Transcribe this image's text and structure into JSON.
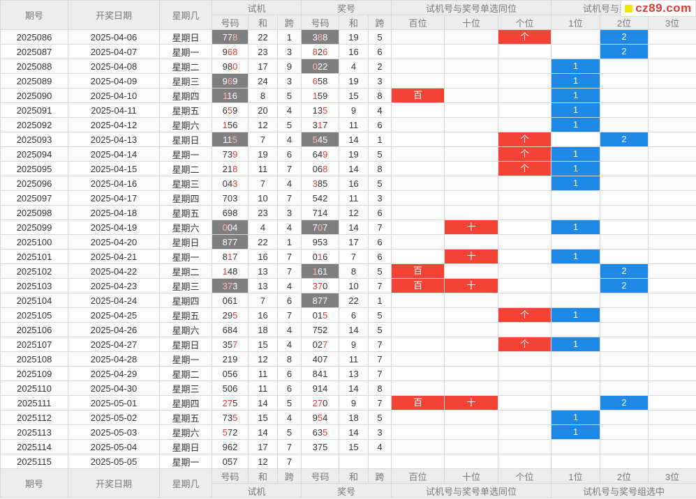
{
  "header": {
    "col_issue": "期号",
    "col_date": "开奖日期",
    "col_weekday": "星期几",
    "group_trial": "试机",
    "group_prize": "奖号",
    "group_same_pos": "试机号与奖号单选同位",
    "group_group_hit": "试机号与奖号组选中",
    "sub_number": "号码",
    "sub_sum": "和",
    "sub_span": "跨",
    "sub_hundreds": "百位",
    "sub_tens": "十位",
    "sub_units": "个位",
    "sub_hit1": "1位",
    "sub_hit2": "2位",
    "sub_hit3": "3位"
  },
  "labels": {
    "hundreds": "百",
    "tens": "十",
    "units": "个"
  },
  "logo": {
    "text": "cz89.com"
  },
  "colors": {
    "red": "#f44336",
    "blue": "#1e88e5",
    "highlight": "#7f7f7f"
  },
  "rows": [
    {
      "issue": "2025086",
      "date": "2025-04-06",
      "weekday": "星期日",
      "trial": "778",
      "tsum": "22",
      "tspan": "1",
      "prize": "388",
      "psum": "19",
      "pspan": "5",
      "same": [
        false,
        false,
        true
      ],
      "hit": "2",
      "hlT": true,
      "hlP": true
    },
    {
      "issue": "2025087",
      "date": "2025-04-07",
      "weekday": "星期一",
      "trial": "968",
      "tsum": "23",
      "tspan": "3",
      "prize": "826",
      "psum": "16",
      "pspan": "6",
      "same": [
        false,
        false,
        false
      ],
      "hit": "2",
      "hlT": false,
      "hlP": false
    },
    {
      "issue": "2025088",
      "date": "2025-04-08",
      "weekday": "星期二",
      "trial": "980",
      "tsum": "17",
      "tspan": "9",
      "prize": "022",
      "psum": "4",
      "pspan": "2",
      "same": [
        false,
        false,
        false
      ],
      "hit": "1",
      "hlT": false,
      "hlP": true
    },
    {
      "issue": "2025089",
      "date": "2025-04-09",
      "weekday": "星期三",
      "trial": "969",
      "tsum": "24",
      "tspan": "3",
      "prize": "658",
      "psum": "19",
      "pspan": "3",
      "same": [
        false,
        false,
        false
      ],
      "hit": "1",
      "hlT": true,
      "hlP": false
    },
    {
      "issue": "2025090",
      "date": "2025-04-10",
      "weekday": "星期四",
      "trial": "116",
      "tsum": "8",
      "tspan": "5",
      "prize": "159",
      "psum": "15",
      "pspan": "8",
      "same": [
        true,
        false,
        false
      ],
      "hit": "1",
      "hlT": true,
      "hlP": false
    },
    {
      "issue": "2025091",
      "date": "2025-04-11",
      "weekday": "星期五",
      "trial": "659",
      "tsum": "20",
      "tspan": "4",
      "prize": "135",
      "psum": "9",
      "pspan": "4",
      "same": [
        false,
        false,
        false
      ],
      "hit": "1",
      "hlT": false,
      "hlP": false
    },
    {
      "issue": "2025092",
      "date": "2025-04-12",
      "weekday": "星期六",
      "trial": "156",
      "tsum": "12",
      "tspan": "5",
      "prize": "317",
      "psum": "11",
      "pspan": "6",
      "same": [
        false,
        false,
        false
      ],
      "hit": "1",
      "hlT": false,
      "hlP": false
    },
    {
      "issue": "2025093",
      "date": "2025-04-13",
      "weekday": "星期日",
      "trial": "115",
      "tsum": "7",
      "tspan": "4",
      "prize": "545",
      "psum": "14",
      "pspan": "1",
      "same": [
        false,
        false,
        true
      ],
      "hit": "2",
      "hlT": true,
      "hlP": true
    },
    {
      "issue": "2025094",
      "date": "2025-04-14",
      "weekday": "星期一",
      "trial": "739",
      "tsum": "19",
      "tspan": "6",
      "prize": "649",
      "psum": "19",
      "pspan": "5",
      "same": [
        false,
        false,
        true
      ],
      "hit": "1",
      "hlT": false,
      "hlP": false
    },
    {
      "issue": "2025095",
      "date": "2025-04-15",
      "weekday": "星期二",
      "trial": "218",
      "tsum": "11",
      "tspan": "7",
      "prize": "068",
      "psum": "14",
      "pspan": "8",
      "same": [
        false,
        false,
        true
      ],
      "hit": "1",
      "hlT": false,
      "hlP": false
    },
    {
      "issue": "2025096",
      "date": "2025-04-16",
      "weekday": "星期三",
      "trial": "043",
      "tsum": "7",
      "tspan": "4",
      "prize": "385",
      "psum": "16",
      "pspan": "5",
      "same": [
        false,
        false,
        false
      ],
      "hit": "1",
      "hlT": false,
      "hlP": false
    },
    {
      "issue": "2025097",
      "date": "2025-04-17",
      "weekday": "星期四",
      "trial": "703",
      "tsum": "10",
      "tspan": "7",
      "prize": "542",
      "psum": "11",
      "pspan": "3",
      "same": [
        false,
        false,
        false
      ],
      "hit": "",
      "hlT": false,
      "hlP": false
    },
    {
      "issue": "2025098",
      "date": "2025-04-18",
      "weekday": "星期五",
      "trial": "698",
      "tsum": "23",
      "tspan": "3",
      "prize": "714",
      "psum": "12",
      "pspan": "6",
      "same": [
        false,
        false,
        false
      ],
      "hit": "",
      "hlT": false,
      "hlP": false
    },
    {
      "issue": "2025099",
      "date": "2025-04-19",
      "weekday": "星期六",
      "trial": "004",
      "tsum": "4",
      "tspan": "4",
      "prize": "707",
      "psum": "14",
      "pspan": "7",
      "same": [
        false,
        true,
        false
      ],
      "hit": "1",
      "hlT": true,
      "hlP": true
    },
    {
      "issue": "2025100",
      "date": "2025-04-20",
      "weekday": "星期日",
      "trial": "877",
      "tsum": "22",
      "tspan": "1",
      "prize": "953",
      "psum": "17",
      "pspan": "6",
      "same": [
        false,
        false,
        false
      ],
      "hit": "",
      "hlT": true,
      "hlP": false
    },
    {
      "issue": "2025101",
      "date": "2025-04-21",
      "weekday": "星期一",
      "trial": "817",
      "tsum": "16",
      "tspan": "7",
      "prize": "016",
      "psum": "7",
      "pspan": "6",
      "same": [
        false,
        true,
        false
      ],
      "hit": "1",
      "hlT": false,
      "hlP": false
    },
    {
      "issue": "2025102",
      "date": "2025-04-22",
      "weekday": "星期二",
      "trial": "148",
      "tsum": "13",
      "tspan": "7",
      "prize": "161",
      "psum": "8",
      "pspan": "5",
      "same": [
        true,
        false,
        false
      ],
      "hit": "2",
      "hlT": false,
      "hlP": true
    },
    {
      "issue": "2025103",
      "date": "2025-04-23",
      "weekday": "星期三",
      "trial": "373",
      "tsum": "13",
      "tspan": "4",
      "prize": "370",
      "psum": "10",
      "pspan": "7",
      "same": [
        true,
        true,
        false
      ],
      "hit": "2",
      "hlT": true,
      "hlP": false
    },
    {
      "issue": "2025104",
      "date": "2025-04-24",
      "weekday": "星期四",
      "trial": "061",
      "tsum": "7",
      "tspan": "6",
      "prize": "877",
      "psum": "22",
      "pspan": "1",
      "same": [
        false,
        false,
        false
      ],
      "hit": "",
      "hlT": false,
      "hlP": true
    },
    {
      "issue": "2025105",
      "date": "2025-04-25",
      "weekday": "星期五",
      "trial": "295",
      "tsum": "16",
      "tspan": "7",
      "prize": "015",
      "psum": "6",
      "pspan": "5",
      "same": [
        false,
        false,
        true
      ],
      "hit": "1",
      "hlT": false,
      "hlP": false
    },
    {
      "issue": "2025106",
      "date": "2025-04-26",
      "weekday": "星期六",
      "trial": "684",
      "tsum": "18",
      "tspan": "4",
      "prize": "752",
      "psum": "14",
      "pspan": "5",
      "same": [
        false,
        false,
        false
      ],
      "hit": "",
      "hlT": false,
      "hlP": false
    },
    {
      "issue": "2025107",
      "date": "2025-04-27",
      "weekday": "星期日",
      "trial": "357",
      "tsum": "15",
      "tspan": "4",
      "prize": "027",
      "psum": "9",
      "pspan": "7",
      "same": [
        false,
        false,
        true
      ],
      "hit": "1",
      "hlT": false,
      "hlP": false
    },
    {
      "issue": "2025108",
      "date": "2025-04-28",
      "weekday": "星期一",
      "trial": "219",
      "tsum": "12",
      "tspan": "8",
      "prize": "407",
      "psum": "11",
      "pspan": "7",
      "same": [
        false,
        false,
        false
      ],
      "hit": "",
      "hlT": false,
      "hlP": false
    },
    {
      "issue": "2025109",
      "date": "2025-04-29",
      "weekday": "星期二",
      "trial": "056",
      "tsum": "11",
      "tspan": "6",
      "prize": "841",
      "psum": "13",
      "pspan": "7",
      "same": [
        false,
        false,
        false
      ],
      "hit": "",
      "hlT": false,
      "hlP": false
    },
    {
      "issue": "2025110",
      "date": "2025-04-30",
      "weekday": "星期三",
      "trial": "506",
      "tsum": "11",
      "tspan": "6",
      "prize": "914",
      "psum": "14",
      "pspan": "8",
      "same": [
        false,
        false,
        false
      ],
      "hit": "",
      "hlT": false,
      "hlP": false
    },
    {
      "issue": "2025111",
      "date": "2025-05-01",
      "weekday": "星期四",
      "trial": "275",
      "tsum": "14",
      "tspan": "5",
      "prize": "270",
      "psum": "9",
      "pspan": "7",
      "same": [
        true,
        true,
        false
      ],
      "hit": "2",
      "hlT": false,
      "hlP": false
    },
    {
      "issue": "2025112",
      "date": "2025-05-02",
      "weekday": "星期五",
      "trial": "735",
      "tsum": "15",
      "tspan": "4",
      "prize": "954",
      "psum": "18",
      "pspan": "5",
      "same": [
        false,
        false,
        false
      ],
      "hit": "1",
      "hlT": false,
      "hlP": false
    },
    {
      "issue": "2025113",
      "date": "2025-05-03",
      "weekday": "星期六",
      "trial": "572",
      "tsum": "14",
      "tspan": "5",
      "prize": "635",
      "psum": "14",
      "pspan": "3",
      "same": [
        false,
        false,
        false
      ],
      "hit": "1",
      "hlT": false,
      "hlP": false
    },
    {
      "issue": "2025114",
      "date": "2025-05-04",
      "weekday": "星期日",
      "trial": "962",
      "tsum": "17",
      "tspan": "7",
      "prize": "375",
      "psum": "15",
      "pspan": "4",
      "same": [
        false,
        false,
        false
      ],
      "hit": "",
      "hlT": false,
      "hlP": false
    },
    {
      "issue": "2025115",
      "date": "2025-05-05",
      "weekday": "星期一",
      "trial": "057",
      "tsum": "12",
      "tspan": "7",
      "prize": "",
      "psum": "",
      "pspan": "",
      "same": [
        false,
        false,
        false
      ],
      "hit": "",
      "hlT": false,
      "hlP": false
    }
  ]
}
